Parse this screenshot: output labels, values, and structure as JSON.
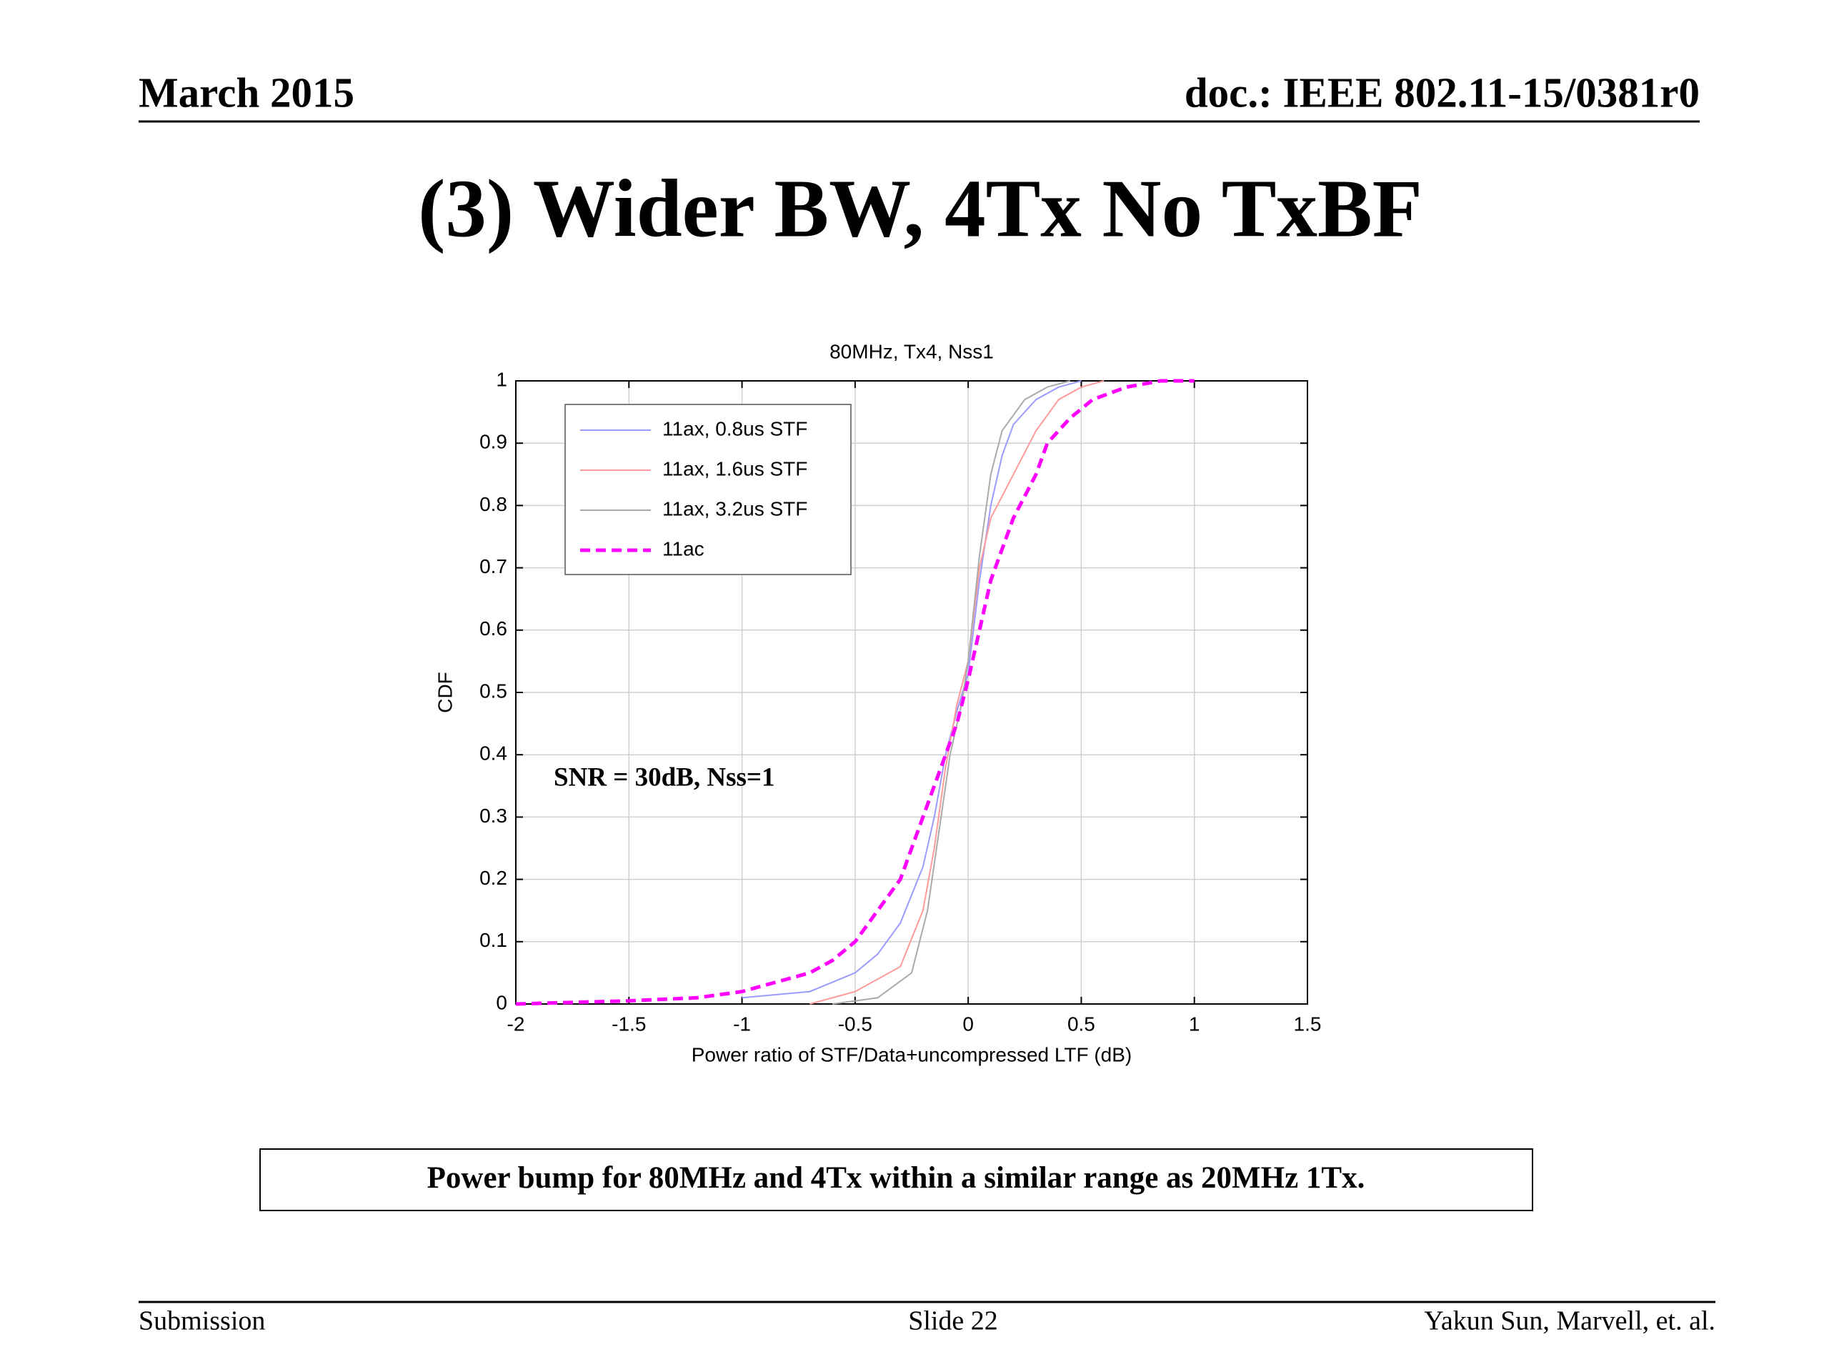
{
  "header": {
    "date": "March 2015",
    "doc": "doc.: IEEE 802.11-15/0381r0"
  },
  "title": "(3) Wider BW, 4Tx No TxBF",
  "chart_data": {
    "type": "line",
    "title": "80MHz, Tx4, Nss1",
    "x_label": "Power ratio of STF/Data+uncompressed LTF (dB)",
    "y_label": "CDF",
    "xlim": [
      -2,
      1.5
    ],
    "ylim": [
      0,
      1
    ],
    "xticks": [
      -2,
      -1.5,
      -1,
      -0.5,
      0,
      0.5,
      1,
      1.5
    ],
    "yticks": [
      0,
      0.1,
      0.2,
      0.3,
      0.4,
      0.5,
      0.6,
      0.7,
      0.8,
      0.9,
      1
    ],
    "grid": true,
    "legend": "upper left",
    "annotation": "SNR = 30dB, Nss=1",
    "series": [
      {
        "name": "11ax, 0.8us STF",
        "color": "#9a9aff",
        "line_style": "solid",
        "x": [
          -1,
          -0.7,
          -0.5,
          -0.4,
          -0.3,
          -0.2,
          -0.15,
          -0.1,
          -0.05,
          0,
          0.05,
          0.1,
          0.15,
          0.2,
          0.3,
          0.4,
          0.5
        ],
        "values": [
          0.01,
          0.02,
          0.05,
          0.08,
          0.13,
          0.22,
          0.3,
          0.4,
          0.47,
          0.53,
          0.68,
          0.8,
          0.88,
          0.93,
          0.97,
          0.99,
          1
        ]
      },
      {
        "name": "11ax, 1.6us STF",
        "color": "#ff9a9a",
        "line_style": "solid",
        "x": [
          -0.7,
          -0.5,
          -0.3,
          -0.2,
          -0.15,
          -0.1,
          -0.05,
          0,
          0.05,
          0.1,
          0.2,
          0.3,
          0.4,
          0.5,
          0.6
        ],
        "values": [
          0,
          0.02,
          0.06,
          0.15,
          0.25,
          0.38,
          0.48,
          0.55,
          0.7,
          0.78,
          0.85,
          0.92,
          0.97,
          0.99,
          1
        ]
      },
      {
        "name": "11ax, 3.2us STF",
        "color": "#aaaaaa",
        "line_style": "solid",
        "x": [
          -0.6,
          -0.4,
          -0.25,
          -0.18,
          -0.12,
          -0.08,
          -0.03,
          0,
          0.05,
          0.1,
          0.15,
          0.25,
          0.35,
          0.45
        ],
        "values": [
          0,
          0.01,
          0.05,
          0.15,
          0.3,
          0.4,
          0.48,
          0.55,
          0.72,
          0.85,
          0.92,
          0.97,
          0.99,
          1
        ]
      },
      {
        "name": "11ac",
        "color": "#ff00ff",
        "line_style": "dashed",
        "x": [
          -2,
          -1.5,
          -1.2,
          -1,
          -0.9,
          -0.8,
          -0.7,
          -0.6,
          -0.5,
          -0.4,
          -0.3,
          -0.25,
          -0.2,
          -0.15,
          -0.1,
          -0.05,
          0,
          0.05,
          0.1,
          0.15,
          0.2,
          0.3,
          0.35,
          0.45,
          0.55,
          0.7,
          0.85,
          1
        ],
        "values": [
          0,
          0.005,
          0.01,
          0.02,
          0.03,
          0.04,
          0.05,
          0.07,
          0.1,
          0.15,
          0.2,
          0.25,
          0.3,
          0.35,
          0.4,
          0.45,
          0.52,
          0.6,
          0.68,
          0.73,
          0.78,
          0.85,
          0.9,
          0.94,
          0.97,
          0.99,
          1,
          1
        ]
      }
    ]
  },
  "callout": "Power bump for 80MHz and 4Tx within a similar range as 20MHz 1Tx.",
  "footer": {
    "left": "Submission",
    "center": "Slide 22",
    "right": "Yakun Sun,  Marvell, et. al."
  }
}
